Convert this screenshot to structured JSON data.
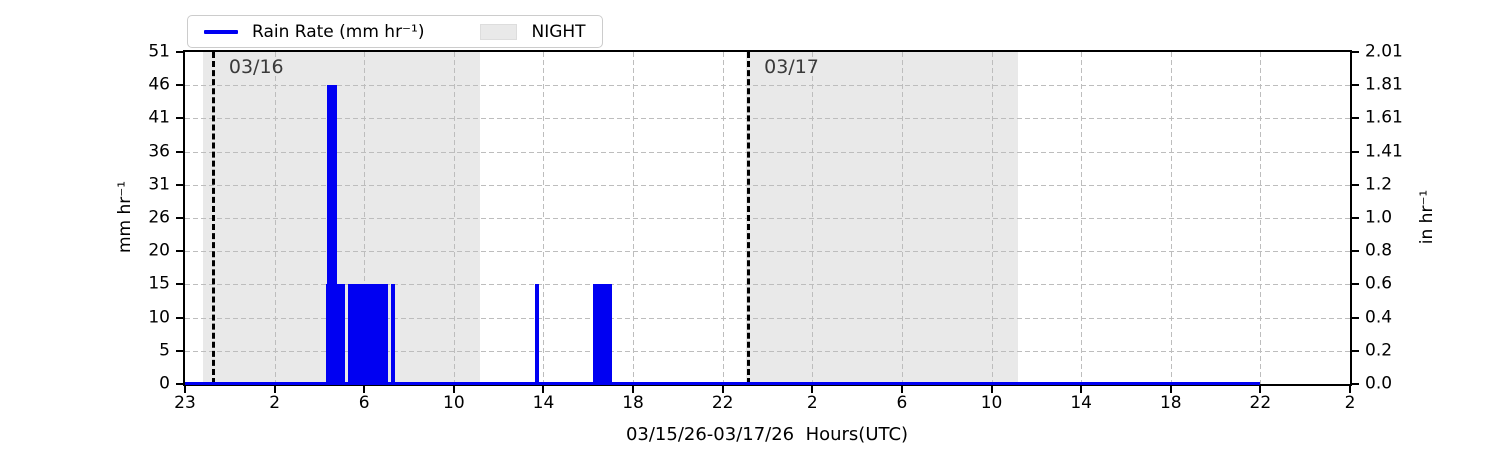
{
  "colors": {
    "rain_blue": "#0000f2",
    "night_gray": "#e9e9e9",
    "grid_gray": "#bdbdbd",
    "day_label_gray": "#3a3a3a",
    "axis_black": "#000000",
    "legend_border": "#cccccc"
  },
  "chart_data": {
    "type": "bar",
    "title": "",
    "xlabel": "03/15/26-03/17/26  Hours(UTC)",
    "ylabel_left": "mm hr⁻¹",
    "ylabel_right": "in hr⁻¹",
    "legend": [
      {
        "label": "Rain Rate (mm hr⁻¹)",
        "swatch": "line"
      },
      {
        "label": "NIGHT",
        "swatch": "patch"
      }
    ],
    "x_axis": {
      "note_hours_since": "hours since 23:00 UTC 03/15/26",
      "tick_labels": [
        "23",
        "2",
        "6",
        "10",
        "14",
        "18",
        "22",
        "2",
        "6",
        "10",
        "14",
        "18",
        "22",
        "2"
      ],
      "tick_hours": [
        0,
        3,
        7,
        11,
        15,
        19,
        23,
        27,
        31,
        35,
        39,
        43,
        47,
        51
      ],
      "range_hours": [
        0,
        51
      ],
      "grid": true
    },
    "y_axis_left": {
      "tick_labels": [
        "0",
        "5",
        "10",
        "15",
        "20",
        "26",
        "31",
        "36",
        "41",
        "46",
        "51"
      ],
      "range_mm": [
        0,
        51
      ],
      "grid": true
    },
    "y_axis_right": {
      "tick_labels": [
        "0.0",
        "0.2",
        "0.4",
        "0.6",
        "0.8",
        "1.0",
        "1.2",
        "1.41",
        "1.61",
        "1.81",
        "2.01"
      ]
    },
    "day_markers": [
      {
        "label": "03/16",
        "hour": 0.9
      },
      {
        "label": "03/17",
        "hour": 24.09
      }
    ],
    "night_regions": [
      {
        "start_hour": 0.6,
        "end_hour": 12.17
      },
      {
        "start_hour": 24.05,
        "end_hour": 36.19
      }
    ],
    "rain_bars": [
      {
        "start_hour": 5.29,
        "end_hour": 6.14,
        "value_mm": 15.3
      },
      {
        "start_hour": 5.35,
        "end_hour": 5.77,
        "value_mm": 46.0
      },
      {
        "start_hour": 6.29,
        "end_hour": 8.07,
        "value_mm": 15.3
      },
      {
        "start_hour": 8.21,
        "end_hour": 8.36,
        "value_mm": 15.3
      },
      {
        "start_hour": 14.63,
        "end_hour": 14.81,
        "value_mm": 15.3
      },
      {
        "start_hour": 17.23,
        "end_hour": 18.05,
        "value_mm": 15.3
      }
    ],
    "baseline": {
      "start_hour": 0,
      "end_hour": 46.98,
      "value_mm": 0
    }
  }
}
